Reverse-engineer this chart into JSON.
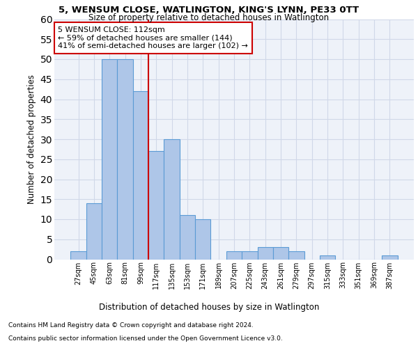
{
  "title": "5, WENSUM CLOSE, WATLINGTON, KING'S LYNN, PE33 0TT",
  "subtitle": "Size of property relative to detached houses in Watlington",
  "xlabel": "Distribution of detached houses by size in Watlington",
  "ylabel": "Number of detached properties",
  "bar_color": "#aec6e8",
  "bar_edge_color": "#5b9bd5",
  "grid_color": "#d0d8e8",
  "background_color": "#eef2f9",
  "vline_color": "#cc0000",
  "vline_x": 4.5,
  "categories": [
    "27sqm",
    "45sqm",
    "63sqm",
    "81sqm",
    "99sqm",
    "117sqm",
    "135sqm",
    "153sqm",
    "171sqm",
    "189sqm",
    "207sqm",
    "225sqm",
    "243sqm",
    "261sqm",
    "279sqm",
    "297sqm",
    "315sqm",
    "333sqm",
    "351sqm",
    "369sqm",
    "387sqm"
  ],
  "values": [
    2,
    14,
    50,
    50,
    42,
    27,
    30,
    11,
    10,
    0,
    2,
    2,
    3,
    3,
    2,
    0,
    1,
    0,
    0,
    0,
    1
  ],
  "annotation_text": "5 WENSUM CLOSE: 112sqm\n← 59% of detached houses are smaller (144)\n41% of semi-detached houses are larger (102) →",
  "annotation_box_color": "#ffffff",
  "annotation_box_edge": "#cc0000",
  "footnote1": "Contains HM Land Registry data © Crown copyright and database right 2024.",
  "footnote2": "Contains public sector information licensed under the Open Government Licence v3.0.",
  "ylim": [
    0,
    60
  ],
  "yticks": [
    0,
    5,
    10,
    15,
    20,
    25,
    30,
    35,
    40,
    45,
    50,
    55,
    60
  ]
}
